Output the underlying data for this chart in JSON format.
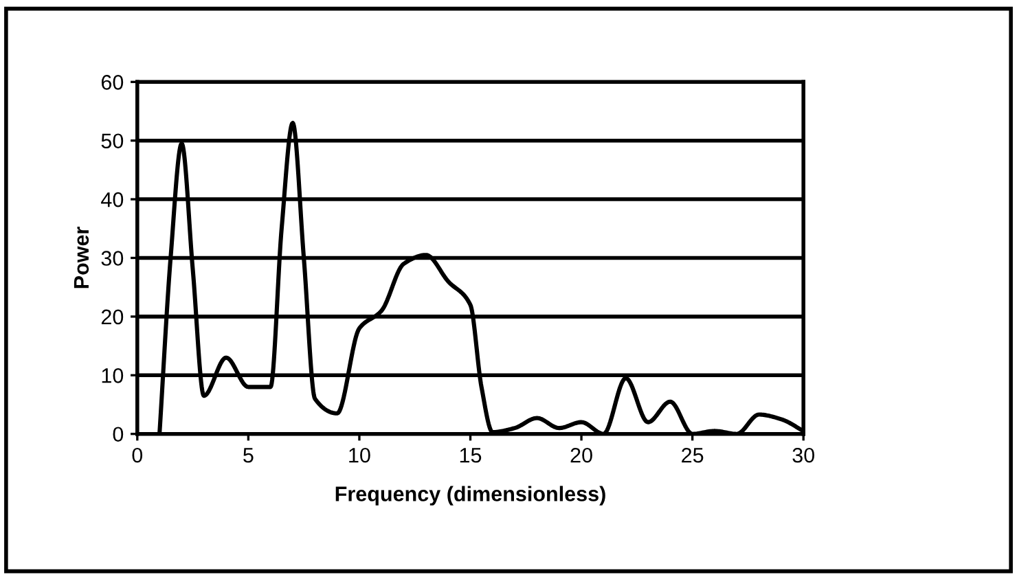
{
  "chart_data": {
    "type": "line",
    "xlabel": "Frequency (dimensionless)",
    "ylabel": "Power",
    "x": [
      1,
      1.5,
      2,
      2.5,
      3,
      4,
      5,
      6,
      6.5,
      7,
      7.5,
      8,
      9,
      10,
      11,
      12,
      13,
      14,
      15,
      15.5,
      16,
      17,
      18,
      19,
      20,
      21,
      22,
      23,
      24,
      25,
      26,
      27,
      28,
      29,
      30
    ],
    "series": [
      {
        "color": "#000000",
        "values": [
          0,
          30,
          49.5,
          28,
          6.5,
          13,
          8,
          8,
          35,
          53,
          30,
          6,
          3.5,
          18,
          21,
          29,
          30.5,
          26,
          22,
          8,
          0.3,
          1,
          2.7,
          1,
          2,
          0,
          9.5,
          2,
          5.5,
          0,
          0.5,
          0,
          3.3,
          2.5,
          0.5
        ]
      }
    ],
    "xlim": [
      0,
      30
    ],
    "xticks": [
      0,
      5,
      10,
      15,
      20,
      25,
      30
    ],
    "ylim": [
      0,
      60
    ],
    "yticks": [
      0,
      10,
      20,
      30,
      40,
      50,
      60
    ],
    "grid": "y",
    "marker": "none",
    "line_style": "solid"
  }
}
